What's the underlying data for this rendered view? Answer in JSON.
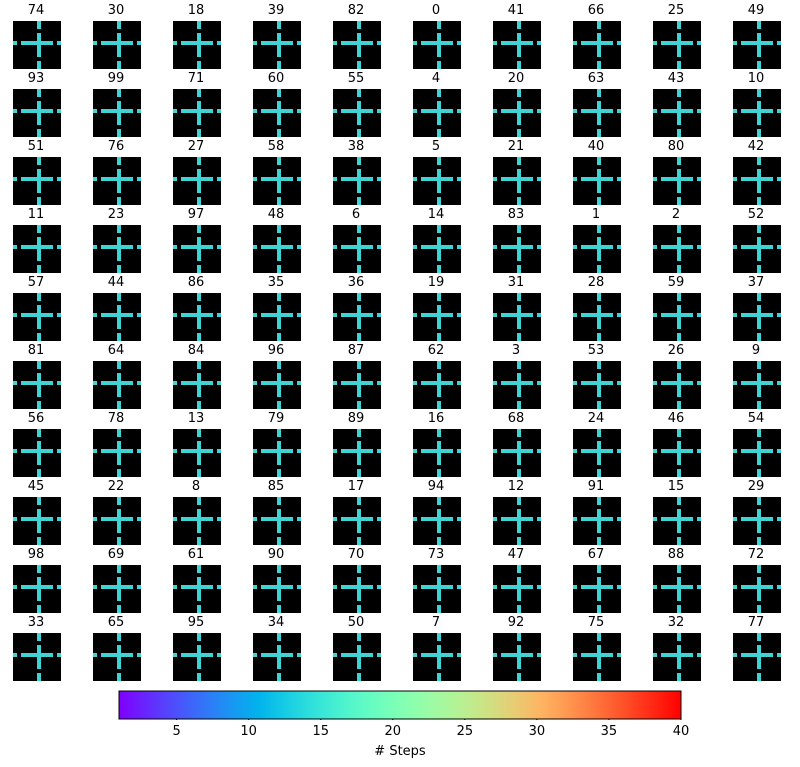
{
  "chart_data": {
    "type": "heatmap",
    "description": "10x10 grid of maze trajectory panels, each titled with a state index; path color encodes number of steps.",
    "panel_titles": [
      [
        74,
        30,
        18,
        39,
        82,
        0,
        41,
        66,
        25,
        49
      ],
      [
        93,
        99,
        71,
        60,
        55,
        4,
        20,
        63,
        43,
        10
      ],
      [
        51,
        76,
        27,
        58,
        38,
        5,
        21,
        40,
        80,
        42
      ],
      [
        11,
        23,
        97,
        48,
        6,
        14,
        83,
        1,
        2,
        52
      ],
      [
        57,
        44,
        86,
        35,
        36,
        19,
        31,
        28,
        59,
        37
      ],
      [
        81,
        64,
        84,
        96,
        87,
        62,
        3,
        53,
        26,
        9
      ],
      [
        56,
        78,
        13,
        79,
        89,
        16,
        68,
        24,
        46,
        54
      ],
      [
        45,
        22,
        8,
        85,
        17,
        94,
        12,
        91,
        15,
        29
      ],
      [
        98,
        69,
        61,
        90,
        70,
        73,
        47,
        67,
        88,
        72
      ],
      [
        33,
        65,
        95,
        34,
        50,
        7,
        92,
        75,
        32,
        77
      ]
    ],
    "colorbar": {
      "label": "# Steps",
      "range": [
        1,
        40
      ],
      "ticks": [
        5,
        10,
        15,
        20,
        25,
        30,
        35,
        40
      ],
      "colormap": "rainbow"
    },
    "colors": {
      "background": "#000000",
      "wall": "#3fd3d6",
      "path_start": "#7f00ff",
      "path_end": "#ff0000"
    }
  }
}
